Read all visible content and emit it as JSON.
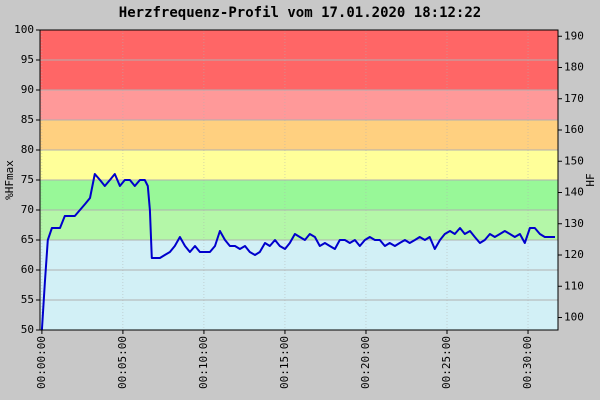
{
  "chart_data": {
    "type": "line",
    "title": "Herzfrequenz-Profil vom 17.01.2020 18:12:22",
    "ylabel": "%HFmax",
    "y2label": "HF",
    "xlim": [
      -7,
      1911
    ],
    "xticks": [
      {
        "value": 0,
        "label": "00:00:00"
      },
      {
        "value": 300,
        "label": "00:05:00"
      },
      {
        "value": 600,
        "label": "00:10:00"
      },
      {
        "value": 900,
        "label": "00:15:00"
      },
      {
        "value": 1200,
        "label": "00:20:00"
      },
      {
        "value": 1500,
        "label": "00:25:00"
      },
      {
        "value": 1800,
        "label": "00:30:00"
      }
    ],
    "ylim": [
      50,
      100
    ],
    "yticks": [
      50,
      55,
      60,
      65,
      70,
      75,
      80,
      85,
      90,
      95,
      100
    ],
    "y2lim": [
      96,
      192
    ],
    "y2ticks": [
      100,
      110,
      120,
      130,
      140,
      150,
      160,
      170,
      180,
      190
    ],
    "grid": true,
    "zones": [
      {
        "from": 50,
        "to": 65,
        "color": "#d2f0f6"
      },
      {
        "from": 65,
        "to": 70,
        "color": "#b4f7a8"
      },
      {
        "from": 70,
        "to": 75,
        "color": "#98f898"
      },
      {
        "from": 75,
        "to": 80,
        "color": "#ffff99"
      },
      {
        "from": 80,
        "to": 85,
        "color": "#ffd080"
      },
      {
        "from": 85,
        "to": 90,
        "color": "#ff9999"
      },
      {
        "from": 90,
        "to": 100,
        "color": "#ff6666"
      }
    ],
    "series": [
      {
        "name": "%HFmax",
        "color": "#0000cc",
        "x": [
          0,
          11,
          22,
          37,
          67,
          85,
          122,
          160,
          178,
          196,
          215,
          233,
          252,
          270,
          289,
          307,
          326,
          344,
          363,
          381,
          392,
          400,
          407,
          418,
          437,
          455,
          474,
          492,
          511,
          530,
          548,
          567,
          585,
          604,
          622,
          641,
          659,
          678,
          696,
          715,
          733,
          752,
          770,
          789,
          807,
          826,
          844,
          863,
          881,
          900,
          918,
          937,
          955,
          974,
          992,
          1011,
          1029,
          1048,
          1066,
          1085,
          1103,
          1122,
          1140,
          1159,
          1177,
          1196,
          1214,
          1233,
          1251,
          1270,
          1288,
          1307,
          1325,
          1344,
          1362,
          1381,
          1399,
          1418,
          1436,
          1455,
          1474,
          1492,
          1511,
          1529,
          1548,
          1566,
          1585,
          1603,
          1622,
          1640,
          1659,
          1677,
          1696,
          1714,
          1733,
          1751,
          1770,
          1788,
          1807,
          1825,
          1844,
          1862,
          1881,
          1900
        ],
        "values": [
          50,
          58,
          65,
          67,
          67,
          69,
          69,
          71,
          72,
          76,
          75,
          74,
          75,
          76,
          74,
          75,
          75,
          74,
          75,
          75,
          74,
          70,
          62,
          62,
          62,
          62.5,
          63,
          64,
          65.5,
          64,
          63,
          64,
          63,
          63,
          63,
          64,
          66.5,
          65,
          64,
          64,
          63.5,
          64,
          63,
          62.5,
          63,
          64.5,
          64,
          65,
          64,
          63.5,
          64.5,
          66,
          65.5,
          65,
          66,
          65.5,
          64,
          64.5,
          64,
          63.5,
          65,
          65,
          64.5,
          65,
          64,
          65,
          65.5,
          65,
          65,
          64,
          64.5,
          64,
          64.5,
          65,
          64.5,
          65,
          65.5,
          65,
          65.5,
          63.5,
          65,
          66,
          66.5,
          66,
          67,
          66,
          66.5,
          65.5,
          64.5,
          65,
          66,
          65.5,
          66,
          66.5,
          66,
          65.5,
          66,
          64.5,
          67,
          67,
          66,
          65.5,
          65.5,
          65.5
        ]
      }
    ]
  }
}
